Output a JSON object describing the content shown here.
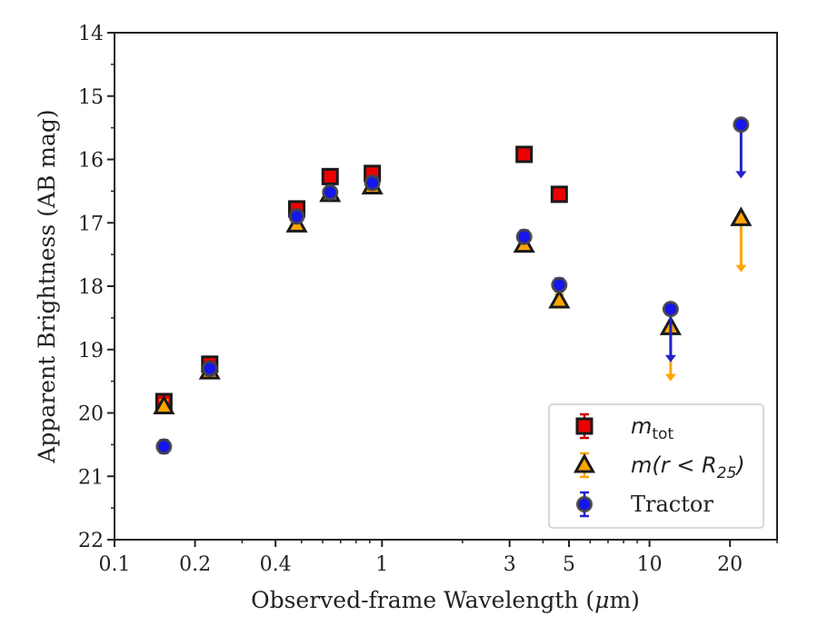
{
  "chart_data": {
    "type": "scatter",
    "xlabel_pre": "Observed-frame Wavelength (",
    "xlabel_mu": "μ",
    "xlabel_post": "m)",
    "ylabel": "Apparent Brightness (AB mag)",
    "xscale": "log",
    "xlim": [
      0.1,
      30
    ],
    "ylim": [
      14,
      22
    ],
    "y_inverted": true,
    "grid": false,
    "legend_position": "bottom-right",
    "x_ticks": [
      {
        "value": 0.1,
        "label": "0.1"
      },
      {
        "value": 0.2,
        "label": "0.2"
      },
      {
        "value": 0.4,
        "label": "0.4"
      },
      {
        "value": 1,
        "label": "1"
      },
      {
        "value": 3,
        "label": "3"
      },
      {
        "value": 5,
        "label": "5"
      },
      {
        "value": 10,
        "label": "10"
      },
      {
        "value": 20,
        "label": "20"
      }
    ],
    "y_ticks": [
      {
        "value": 14,
        "label": "14"
      },
      {
        "value": 15,
        "label": "15"
      },
      {
        "value": 16,
        "label": "16"
      },
      {
        "value": 17,
        "label": "17"
      },
      {
        "value": 18,
        "label": "18"
      },
      {
        "value": 19,
        "label": "19"
      },
      {
        "value": 20,
        "label": "20"
      },
      {
        "value": 21,
        "label": "21"
      },
      {
        "value": 22,
        "label": "22"
      }
    ],
    "series": [
      {
        "key": "mtot",
        "legend": {
          "pre": "m",
          "sub": "tot",
          "post": ""
        },
        "marker": "square",
        "color": "#ee0000",
        "errcolor": "#cc0000",
        "points": [
          {
            "x": 0.153,
            "y": 19.82
          },
          {
            "x": 0.227,
            "y": 19.23
          },
          {
            "x": 0.48,
            "y": 16.78
          },
          {
            "x": 0.64,
            "y": 16.27
          },
          {
            "x": 0.92,
            "y": 16.22
          },
          {
            "x": 3.4,
            "y": 15.92
          },
          {
            "x": 4.6,
            "y": 16.55
          }
        ],
        "limits": []
      },
      {
        "key": "mr25",
        "legend": {
          "pre": "m(r < R",
          "sub": "25",
          "post": ")"
        },
        "marker": "triangle",
        "color": "#ffa500",
        "errcolor": "#ffa500",
        "points": [
          {
            "x": 0.153,
            "y": 19.9
          },
          {
            "x": 0.227,
            "y": 19.35
          },
          {
            "x": 0.48,
            "y": 17.03
          },
          {
            "x": 0.64,
            "y": 16.55
          },
          {
            "x": 0.92,
            "y": 16.43
          },
          {
            "x": 3.4,
            "y": 17.35
          },
          {
            "x": 4.6,
            "y": 18.23
          }
        ],
        "limits": [
          {
            "x": 12,
            "y": 18.65,
            "arrow_to": 19.5
          },
          {
            "x": 22,
            "y": 16.93,
            "arrow_to": 17.78
          }
        ]
      },
      {
        "key": "tractor",
        "legend": {
          "pre": "Tractor",
          "sub": "",
          "post": ""
        },
        "marker": "circle",
        "color": "#1515ee",
        "errcolor": "#2222cc",
        "points": [
          {
            "x": 0.153,
            "y": 20.53
          },
          {
            "x": 0.227,
            "y": 19.3
          },
          {
            "x": 0.48,
            "y": 16.9
          },
          {
            "x": 0.64,
            "y": 16.52
          },
          {
            "x": 0.92,
            "y": 16.37
          },
          {
            "x": 3.4,
            "y": 17.22
          },
          {
            "x": 4.6,
            "y": 17.98
          }
        ],
        "limits": [
          {
            "x": 12,
            "y": 18.36,
            "arrow_to": 19.2
          },
          {
            "x": 22,
            "y": 15.45,
            "arrow_to": 16.3
          }
        ]
      }
    ]
  }
}
